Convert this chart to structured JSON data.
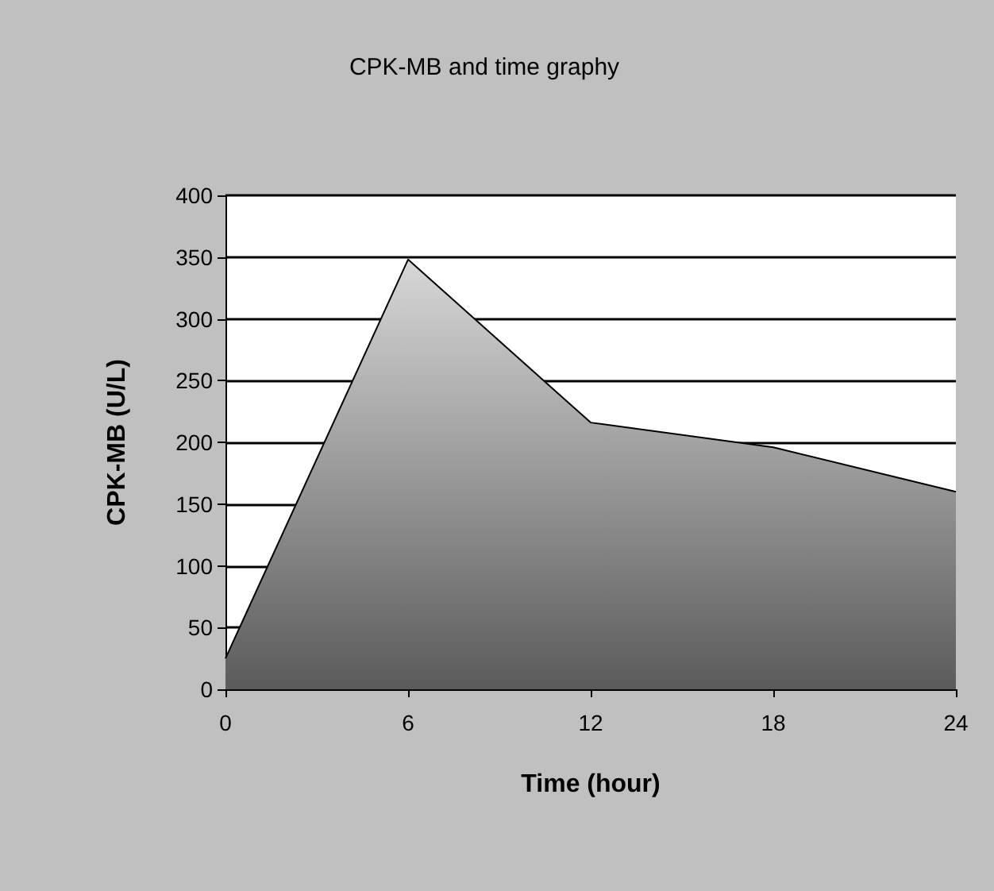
{
  "chart_data": {
    "type": "area",
    "title": "CPK-MB and time graphy",
    "xlabel": "Time (hour)",
    "ylabel": "CPK-MB (U/L)",
    "x": [
      0,
      6,
      12,
      18,
      24
    ],
    "series": [
      {
        "color": "#a6a6a6",
        "values": [
          25,
          348,
          216,
          196,
          160
        ]
      }
    ],
    "xlim": [
      0,
      24
    ],
    "xticks": [
      0,
      6,
      12,
      18,
      24
    ],
    "ylim": [
      0,
      400
    ],
    "yticks": [
      0,
      50,
      100,
      150,
      200,
      250,
      300,
      350,
      400
    ],
    "grid": "y",
    "marker": "none",
    "line_style": "solid"
  }
}
